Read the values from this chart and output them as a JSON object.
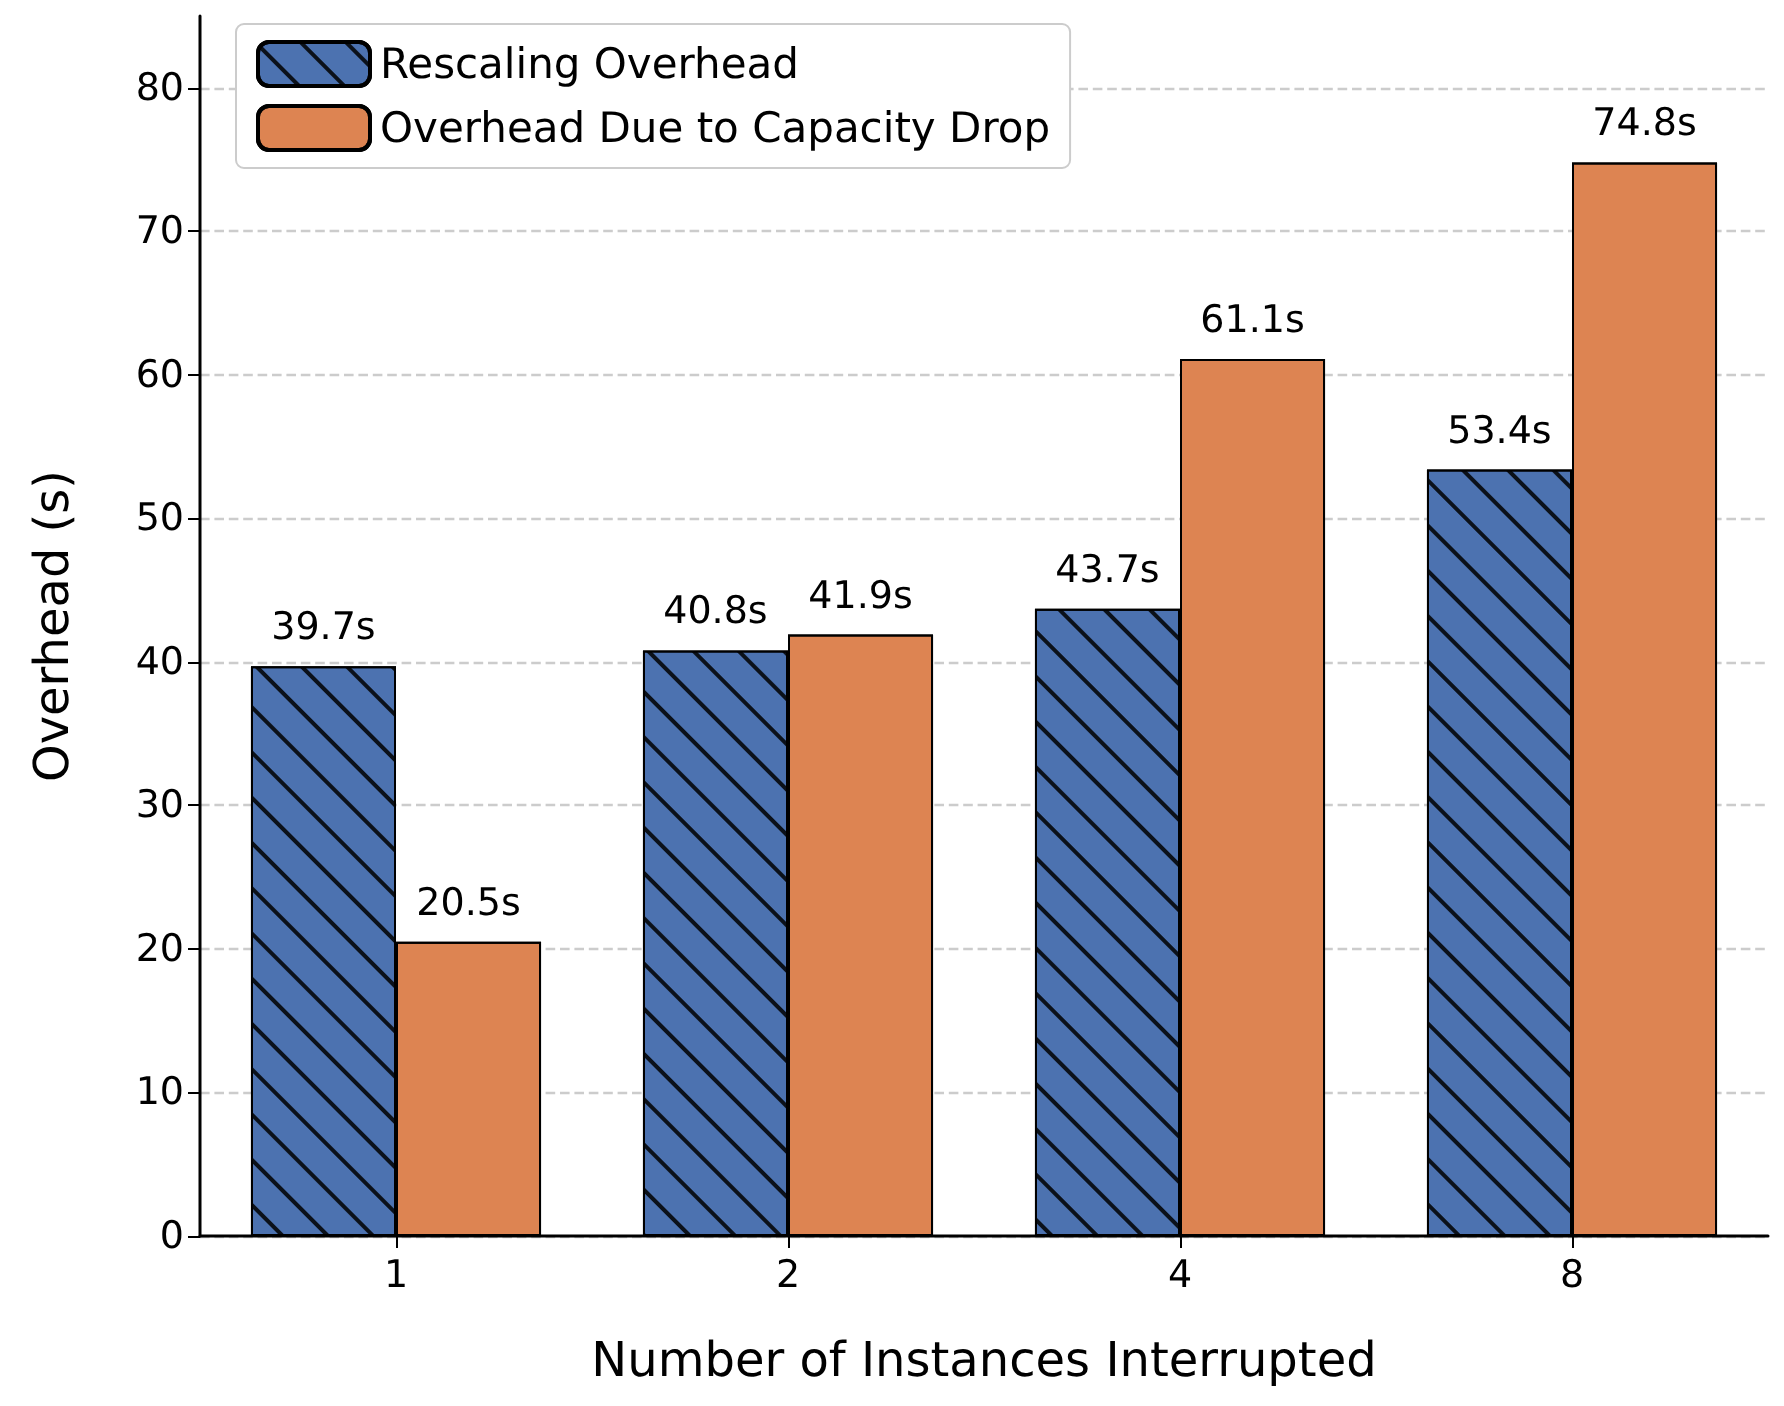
{
  "chart_data": {
    "type": "bar",
    "xlabel": "Number of Instances Interrupted",
    "ylabel": "Overhead (s)",
    "categories": [
      "1",
      "2",
      "4",
      "8"
    ],
    "series": [
      {
        "name": "Rescaling Overhead",
        "color": "#4c72b0",
        "values": [
          39.7,
          40.8,
          43.7,
          53.4
        ],
        "value_labels": [
          "39.7s",
          "40.8s",
          "43.7s",
          "53.4s"
        ]
      },
      {
        "name": "Overhead Due to Capacity Drop",
        "color": "#dd8452",
        "values": [
          20.5,
          41.9,
          61.1,
          74.8
        ],
        "value_labels": [
          "20.5s",
          "41.9s",
          "61.1s",
          "74.8s"
        ]
      }
    ],
    "ylim": [
      0,
      85
    ],
    "yticks": [
      0,
      10,
      20,
      30,
      40,
      50,
      60,
      70,
      80
    ],
    "grid": "y",
    "legend": "top left"
  }
}
